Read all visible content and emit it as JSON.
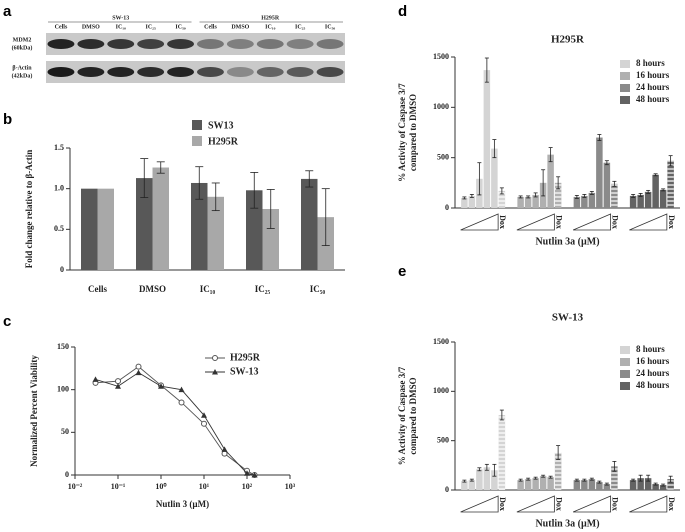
{
  "blot": {
    "label": "a",
    "groups": [
      "SW-13",
      "H295R"
    ],
    "lanes": [
      "Cells",
      "DMSO",
      "IC₁₀",
      "IC₂₅",
      "IC₅₀",
      "Cells",
      "DMSO",
      "IC₁₀",
      "IC₂₅",
      "IC₅₀"
    ],
    "rows": [
      [
        "MDM2",
        "(60kDa)"
      ],
      [
        "β-Actin",
        "(42kDa)"
      ]
    ]
  },
  "chart_data": [
    {
      "type": "bar",
      "label": "b",
      "ylabel": "Fold change relative to β-Actin",
      "categories": [
        "Cells",
        "DMSO",
        "IC₁₀",
        "IC₂₅",
        "IC₅₀"
      ],
      "series": [
        {
          "name": "SW13",
          "color": "#585858",
          "values": [
            1,
            1.13,
            1.07,
            0.98,
            1.12
          ],
          "errors": [
            0,
            0.24,
            0.2,
            0.22,
            0.1
          ]
        },
        {
          "name": "H295R",
          "color": "#a8a8a8",
          "values": [
            1,
            1.26,
            0.9,
            0.75,
            0.65
          ],
          "errors": [
            0,
            0.07,
            0.17,
            0.24,
            0.35
          ]
        }
      ],
      "ylim": [
        0,
        1.5
      ],
      "yticks": [
        0,
        0.5,
        {
          "value": 1,
          "label": "1.0"
        },
        1.5
      ]
    },
    {
      "type": "scatter",
      "label": "c",
      "ylabel": "Normalized Percent Viability",
      "xlabel": "Nutlin 3 (µM)",
      "xscale": "log",
      "series": [
        {
          "name": "H295R",
          "color": "#555555",
          "marker": "circle",
          "x": [
            0.03,
            0.1,
            0.3,
            1,
            3,
            10,
            30,
            100,
            150
          ],
          "values": [
            108,
            110,
            127,
            105,
            85,
            60,
            25,
            5,
            0
          ]
        },
        {
          "name": "SW-13",
          "color": "#333333",
          "marker": "triangle",
          "x": [
            0.03,
            0.1,
            0.3,
            1,
            3,
            10,
            30,
            100,
            150
          ],
          "values": [
            112,
            104,
            120,
            104,
            100,
            70,
            30,
            2,
            0
          ]
        }
      ],
      "xlim": [
        0.01,
        1000
      ],
      "xticks": [
        {
          "value": 0.01,
          "label": "10⁻²"
        },
        {
          "value": 0.1,
          "label": "10⁻¹"
        },
        {
          "value": 1,
          "label": "10⁰"
        },
        {
          "value": 10,
          "label": "10¹"
        },
        {
          "value": 100,
          "label": "10²"
        },
        {
          "value": 1000,
          "label": "10³"
        }
      ],
      "ylim": [
        0,
        150
      ],
      "yticks": [
        0,
        50,
        100,
        150
      ]
    },
    {
      "type": "blocks",
      "label": "d",
      "title": "H295R",
      "ylabel": [
        "% Activity of Caspase 3/7",
        "compared to DMSO"
      ],
      "xlabel": "Nutlin 3a (µM)",
      "categories": [
        null,
        null,
        null,
        null,
        null,
        "Dox"
      ],
      "series": [
        {
          "name": "8 hours",
          "color": "#d4d4d4",
          "values": [
            100,
            120,
            290,
            1370,
            590,
            170
          ],
          "errors": [
            10,
            15,
            160,
            120,
            90,
            30
          ]
        },
        {
          "name": "16 hours",
          "color": "#b0b0b0",
          "values": [
            110,
            110,
            130,
            250,
            530,
            250
          ],
          "errors": [
            10,
            10,
            20,
            130,
            70,
            60
          ]
        },
        {
          "name": "24 hours",
          "color": "#8a8a8a",
          "values": [
            110,
            120,
            150,
            700,
            450,
            240
          ],
          "errors": [
            15,
            15,
            15,
            30,
            20,
            25
          ]
        },
        {
          "name": "48 hours",
          "color": "#636363",
          "values": [
            120,
            130,
            160,
            330,
            180,
            470
          ],
          "errors": [
            15,
            15,
            15,
            10,
            10,
            50
          ]
        }
      ],
      "ylim": [
        0,
        1500
      ],
      "yticks": [
        0,
        500,
        1000,
        1500
      ]
    },
    {
      "type": "blocks",
      "label": "e",
      "title": "SW-13",
      "ylabel": [
        "% Activity of Caspase 3/7",
        "compared to DMSO"
      ],
      "xlabel": "Nutlin 3a (µM)",
      "categories": [
        null,
        null,
        null,
        null,
        null,
        "Dox"
      ],
      "series": [
        {
          "name": "8 hours",
          "color": "#d4d4d4",
          "values": [
            90,
            100,
            210,
            230,
            200,
            760
          ],
          "errors": [
            10,
            10,
            15,
            30,
            60,
            50
          ]
        },
        {
          "name": "16 hours",
          "color": "#b0b0b0",
          "values": [
            100,
            110,
            120,
            140,
            130,
            380
          ],
          "errors": [
            10,
            10,
            10,
            10,
            10,
            70
          ]
        },
        {
          "name": "24 hours",
          "color": "#8a8a8a",
          "values": [
            100,
            100,
            110,
            80,
            60,
            240
          ],
          "errors": [
            10,
            10,
            10,
            10,
            10,
            50
          ]
        },
        {
          "name": "48 hours",
          "color": "#636363",
          "values": [
            100,
            120,
            120,
            60,
            50,
            110
          ],
          "errors": [
            10,
            30,
            30,
            10,
            10,
            30
          ]
        }
      ],
      "ylim": [
        0,
        1500
      ],
      "yticks": [
        0,
        500,
        1000,
        1500
      ]
    }
  ]
}
